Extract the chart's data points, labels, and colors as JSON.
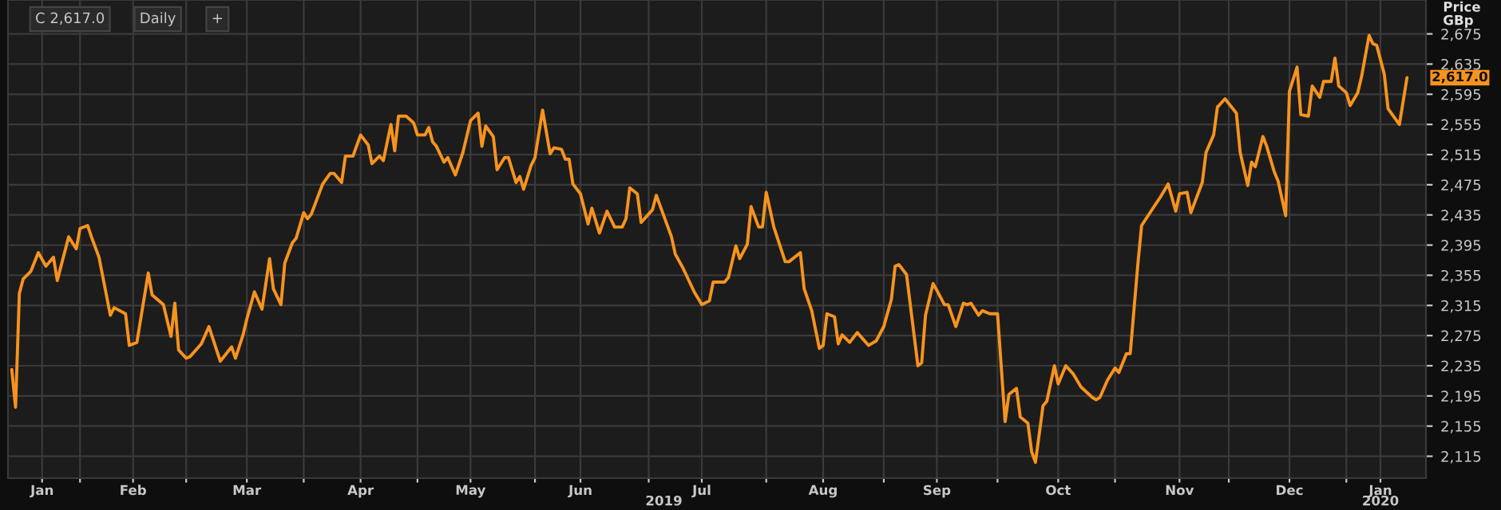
{
  "chart_data": {
    "type": "line",
    "ylabel": "Price\nGBp",
    "annotations": [
      "C 2,617.0",
      "Daily",
      "+",
      {
        "text": "2,617.0",
        "x": "2020-01-17",
        "y": 2617
      }
    ],
    "x": [
      "2019-01-14",
      "2019-01-15",
      "2019-01-16",
      "2019-01-17",
      "2019-01-19",
      "2019-01-21",
      "2019-01-23",
      "2019-01-25",
      "2019-01-26",
      "2019-01-29",
      "2019-01-31",
      "2019-02-01",
      "2019-02-03",
      "2019-02-04",
      "2019-02-06",
      "2019-02-09",
      "2019-02-10",
      "2019-02-13",
      "2019-02-14",
      "2019-02-16",
      "2019-02-19",
      "2019-02-20",
      "2019-02-23",
      "2019-02-25",
      "2019-02-26",
      "2019-02-27",
      "2019-03-01",
      "2019-03-02",
      "2019-03-05",
      "2019-03-07",
      "2019-03-10",
      "2019-03-13",
      "2019-03-14",
      "2019-03-16",
      "2019-03-17",
      "2019-03-19",
      "2019-03-21",
      "2019-03-23",
      "2019-03-24",
      "2019-03-26",
      "2019-03-27",
      "2019-03-29",
      "2019-03-30",
      "2019-04-01",
      "2019-04-02",
      "2019-04-03",
      "2019-04-06",
      "2019-04-08",
      "2019-04-09",
      "2019-04-11",
      "2019-04-12",
      "2019-04-14",
      "2019-04-16",
      "2019-04-18",
      "2019-04-19",
      "2019-04-21",
      "2019-04-22",
      "2019-04-24",
      "2019-04-25",
      "2019-04-26",
      "2019-04-28",
      "2019-04-30",
      "2019-05-01",
      "2019-05-03",
      "2019-05-04",
      "2019-05-05",
      "2019-05-06",
      "2019-05-08",
      "2019-05-09",
      "2019-05-11",
      "2019-05-13",
      "2019-05-15",
      "2019-05-17",
      "2019-05-18",
      "2019-05-19",
      "2019-05-21",
      "2019-05-22",
      "2019-05-24",
      "2019-05-25",
      "2019-05-27",
      "2019-05-28",
      "2019-05-29",
      "2019-05-31",
      "2019-06-01",
      "2019-06-03",
      "2019-06-05",
      "2019-06-06",
      "2019-06-08",
      "2019-06-09",
      "2019-06-10",
      "2019-06-11",
      "2019-06-13",
      "2019-06-15",
      "2019-06-16",
      "2019-06-18",
      "2019-06-20",
      "2019-06-22",
      "2019-06-24",
      "2019-06-25",
      "2019-06-26",
      "2019-06-28",
      "2019-06-29",
      "2019-07-02",
      "2019-07-03",
      "2019-07-07",
      "2019-07-08",
      "2019-07-10",
      "2019-07-13",
      "2019-07-15",
      "2019-07-17",
      "2019-07-18",
      "2019-07-21",
      "2019-07-22",
      "2019-07-24",
      "2019-07-25",
      "2019-07-27",
      "2019-07-28",
      "2019-07-30",
      "2019-07-31",
      "2019-08-01",
      "2019-08-03",
      "2019-08-06",
      "2019-08-07",
      "2019-08-10",
      "2019-08-11",
      "2019-08-13",
      "2019-08-15",
      "2019-08-16",
      "2019-08-17",
      "2019-08-19",
      "2019-08-20",
      "2019-08-21",
      "2019-08-23",
      "2019-08-25",
      "2019-08-28",
      "2019-08-30",
      "2019-09-01",
      "2019-09-03",
      "2019-09-04",
      "2019-09-05",
      "2019-09-07",
      "2019-09-10",
      "2019-09-11",
      "2019-09-12",
      "2019-09-14",
      "2019-09-15",
      "2019-09-17",
      "2019-09-18",
      "2019-09-20",
      "2019-09-22",
      "2019-09-23",
      "2019-09-24",
      "2019-09-26",
      "2019-09-27",
      "2019-09-29",
      "2019-10-01",
      "2019-10-03",
      "2019-10-04",
      "2019-10-06",
      "2019-10-07",
      "2019-10-09",
      "2019-10-10",
      "2019-10-11",
      "2019-10-13",
      "2019-10-14",
      "2019-10-16",
      "2019-10-17",
      "2019-10-19",
      "2019-10-21",
      "2019-10-23",
      "2019-10-26",
      "2019-10-27",
      "2019-10-28",
      "2019-10-30",
      "2019-11-01",
      "2019-11-02",
      "2019-11-04",
      "2019-11-05",
      "2019-11-07",
      "2019-11-08",
      "2019-11-11",
      "2019-11-13",
      "2019-11-15",
      "2019-11-17",
      "2019-11-18",
      "2019-11-20",
      "2019-11-21",
      "2019-11-24",
      "2019-11-25",
      "2019-11-27",
      "2019-11-28",
      "2019-11-30",
      "2019-12-03",
      "2019-12-04",
      "2019-12-06",
      "2019-12-07",
      "2019-12-08",
      "2019-12-10",
      "2019-12-11",
      "2019-12-13",
      "2019-12-14",
      "2019-12-16",
      "2019-12-17",
      "2019-12-19",
      "2019-12-20",
      "2019-12-22",
      "2019-12-23",
      "2019-12-25",
      "2019-12-26",
      "2019-12-28",
      "2019-12-29",
      "2019-12-30",
      "2020-01-01",
      "2020-01-02",
      "2020-01-04",
      "2020-01-05",
      "2020-01-07",
      "2020-01-08",
      "2020-01-09",
      "2020-01-11",
      "2020-01-12",
      "2020-01-14",
      "2020-01-15",
      "2020-01-17"
    ],
    "series": [
      {
        "color": "#f7931e",
        "values": [
          2230,
          2180,
          2331,
          2350,
          2360,
          2385,
          2367,
          2379,
          2348,
          2406,
          2390,
          2417,
          2421,
          2406,
          2379,
          2302,
          2312,
          2304,
          2262,
          2266,
          2358,
          2329,
          2316,
          2274,
          2318,
          2256,
          2245,
          2247,
          2264,
          2287,
          2241,
          2260,
          2245,
          2276,
          2297,
          2333,
          2310,
          2377,
          2337,
          2316,
          2371,
          2398,
          2404,
          2438,
          2430,
          2436,
          2476,
          2490,
          2490,
          2478,
          2513,
          2513,
          2541,
          2528,
          2503,
          2513,
          2507,
          2555,
          2520,
          2566,
          2566,
          2557,
          2541,
          2541,
          2551,
          2532,
          2526,
          2505,
          2511,
          2488,
          2518,
          2560,
          2570,
          2526,
          2553,
          2539,
          2495,
          2511,
          2511,
          2478,
          2486,
          2469,
          2501,
          2511,
          2574,
          2516,
          2524,
          2522,
          2509,
          2509,
          2476,
          2463,
          2423,
          2444,
          2411,
          2440,
          2419,
          2419,
          2430,
          2471,
          2463,
          2425,
          2442,
          2461,
          2406,
          2383,
          2365,
          2333,
          2316,
          2321,
          2346,
          2346,
          2352,
          2394,
          2377,
          2396,
          2446,
          2419,
          2419,
          2465,
          2419,
          2373,
          2373,
          2385,
          2337,
          2308,
          2258,
          2262,
          2304,
          2300,
          2264,
          2276,
          2266,
          2279,
          2262,
          2268,
          2287,
          2323,
          2367,
          2369,
          2356,
          2235,
          2239,
          2302,
          2344,
          2335,
          2316,
          2316,
          2287,
          2318,
          2316,
          2318,
          2302,
          2308,
          2304,
          2304,
          2161,
          2197,
          2205,
          2167,
          2159,
          2121,
          2107,
          2182,
          2188,
          2235,
          2211,
          2235,
          2224,
          2207,
          2193,
          2190,
          2193,
          2216,
          2232,
          2226,
          2251,
          2251,
          2369,
          2421,
          2444,
          2459,
          2476,
          2440,
          2463,
          2465,
          2438,
          2478,
          2518,
          2541,
          2578,
          2589,
          2570,
          2518,
          2474,
          2505,
          2499,
          2539,
          2526,
          2492,
          2480,
          2434,
          2599,
          2631,
          2568,
          2566,
          2606,
          2591,
          2612,
          2612,
          2643,
          2606,
          2597,
          2580,
          2597,
          2618,
          2673,
          2662,
          2660,
          2622,
          2576,
          2562,
          2555,
          2617
        ]
      }
    ],
    "xlim": [
      "2019-01-13",
      "2020-01-22"
    ],
    "xticks": [
      {
        "value": "2019-01-22",
        "label": "Jan"
      },
      {
        "value": "2019-02-01",
        "label": null
      },
      {
        "value": "2019-02-15",
        "label": "Feb"
      },
      {
        "value": "2019-03-01",
        "label": null
      },
      {
        "value": "2019-03-17",
        "label": "Mar"
      },
      {
        "value": "2019-04-01",
        "label": null
      },
      {
        "value": "2019-04-16",
        "label": "Apr"
      },
      {
        "value": "2019-05-01",
        "label": null
      },
      {
        "value": "2019-05-15",
        "label": "May"
      },
      {
        "value": "2019-06-01",
        "label": null
      },
      {
        "value": "2019-06-13",
        "label": "Jun"
      },
      {
        "value": "2019-07-01",
        "label": null
      },
      {
        "value": "2019-07-15",
        "label": "Jul"
      },
      {
        "value": "2019-08-01",
        "label": null
      },
      {
        "value": "2019-08-16",
        "label": "Aug"
      },
      {
        "value": "2019-09-01",
        "label": null
      },
      {
        "value": "2019-09-15",
        "label": "Sep"
      },
      {
        "value": "2019-10-01",
        "label": null
      },
      {
        "value": "2019-10-17",
        "label": "Oct"
      },
      {
        "value": "2019-11-01",
        "label": null
      },
      {
        "value": "2019-11-18",
        "label": "Nov"
      },
      {
        "value": "2019-12-01",
        "label": null
      },
      {
        "value": "2019-12-17",
        "label": "Dec"
      },
      {
        "value": "2020-01-01",
        "label": null
      },
      {
        "value": "2020-01-10",
        "label": "Jan"
      }
    ],
    "x2lim": [
      "2019-01-13",
      "2020-01-22"
    ],
    "x2ticks": [
      {
        "value": "2019-07-05",
        "label": "2019"
      },
      {
        "value": "2020-01-10",
        "label": "2020"
      }
    ],
    "ylim": [
      2086,
      2720
    ],
    "yticks": [
      {
        "value": 2115,
        "label": "2,115"
      },
      {
        "value": 2155,
        "label": "2,155"
      },
      {
        "value": 2195,
        "label": "2,195"
      },
      {
        "value": 2235,
        "label": "2,235"
      },
      {
        "value": 2275,
        "label": "2,275"
      },
      {
        "value": 2315,
        "label": "2,315"
      },
      {
        "value": 2355,
        "label": "2,355"
      },
      {
        "value": 2395,
        "label": "2,395"
      },
      {
        "value": 2435,
        "label": "2,435"
      },
      {
        "value": 2475,
        "label": "2,475"
      },
      {
        "value": 2515,
        "label": "2,515"
      },
      {
        "value": 2555,
        "label": "2,555"
      },
      {
        "value": 2595,
        "label": "2,595"
      },
      {
        "value": 2635,
        "label": "2,635"
      },
      {
        "value": 2675,
        "label": "2,675"
      }
    ],
    "grid": true,
    "legend": false,
    "line_style": "solid",
    "marker": "none"
  }
}
